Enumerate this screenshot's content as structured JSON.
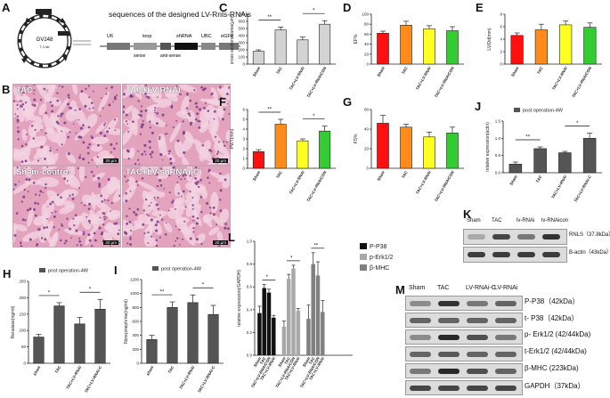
{
  "panel_labels": {
    "A": "A",
    "B": "B",
    "C": "C",
    "D": "D",
    "E": "E",
    "F": "F",
    "G": "G",
    "H": "H",
    "I": "I",
    "J": "J",
    "K": "K",
    "L": "L",
    "M": "M"
  },
  "panelA": {
    "heading": "sequences of the designed LV-Rnls-RNAis",
    "plasmid_name": "GV248",
    "plasmid_size": "7.1 kb",
    "segments": [
      "U6",
      "loop",
      "shRNA",
      "UBC",
      "eGFP"
    ],
    "sub": [
      "sense",
      "anti-sense"
    ]
  },
  "panelB": {
    "images": [
      {
        "title": "TAC",
        "scale": "20 μm"
      },
      {
        "title": "TAC+LV-RNAi",
        "scale": "20 μm"
      },
      {
        "title": "Sham-control",
        "scale": "20 μm"
      },
      {
        "title": "TAC+LV-shRNAi-C",
        "scale": "20 μm"
      }
    ]
  },
  "chart_data": [
    {
      "panel": "C",
      "type": "bar",
      "ylabel": "cross sectional area(μm²)",
      "ylim": [
        0,
        700
      ],
      "yticks": [
        "0",
        "100",
        "200",
        "300",
        "400",
        "500",
        "600",
        "700"
      ],
      "categories": [
        "Sham",
        "TAC",
        "TAC+LV-RNAi",
        "TAC+LV-RNAiCON"
      ],
      "values": [
        180,
        480,
        340,
        560
      ],
      "errors": [
        20,
        40,
        40,
        50
      ],
      "colors": [
        "#d3d3d3",
        "#d3d3d3",
        "#d3d3d3",
        "#d3d3d3"
      ],
      "sig": [
        {
          "from": 0,
          "to": 1,
          "text": "**"
        },
        {
          "from": 2,
          "to": 3,
          "text": "*"
        }
      ]
    },
    {
      "panel": "D",
      "type": "bar",
      "ylabel": "EF%",
      "ylim": [
        0,
        100
      ],
      "yticks": [
        "0",
        "20",
        "40",
        "60",
        "80",
        "100"
      ],
      "categories": [
        "Sham",
        "TAC",
        "TAC+LV-RNAi",
        "TAC+LV-RNAiCON"
      ],
      "values": [
        62,
        78,
        71,
        67
      ],
      "errors": [
        4,
        8,
        6,
        8
      ],
      "colors": [
        "#ff1010",
        "#ff8c1a",
        "#ffff22",
        "#33cc33"
      ],
      "sig": []
    },
    {
      "panel": "E",
      "type": "bar",
      "ylabel": "LVIDd(mm)",
      "ylim": [
        0,
        8
      ],
      "yticks": [
        "0",
        "2",
        "4",
        "6",
        "8"
      ],
      "categories": [
        "Sham",
        "TAC",
        "TAC+LV-RNAi",
        "TAC+LV-RNAiCON"
      ],
      "values": [
        4.6,
        5.5,
        6.3,
        5.9
      ],
      "errors": [
        0.4,
        0.9,
        0.6,
        0.7
      ],
      "colors": [
        "#ff1010",
        "#ff8c1a",
        "#ffff22",
        "#33cc33"
      ],
      "sig": []
    },
    {
      "panel": "F",
      "type": "bar",
      "ylabel": "PWT(mm)",
      "ylim": [
        0,
        6
      ],
      "yticks": [
        "0",
        "1",
        "2",
        "3",
        "4",
        "5",
        "6"
      ],
      "categories": [
        "Sham",
        "TAC",
        "TAC+LV-RNAi",
        "TAC+LV-RNAiCON"
      ],
      "values": [
        1.7,
        4.5,
        2.8,
        3.8
      ],
      "errors": [
        0.2,
        0.5,
        0.2,
        0.5
      ],
      "colors": [
        "#ff1010",
        "#ff8c1a",
        "#ffff22",
        "#33cc33"
      ],
      "sig": [
        {
          "from": 0,
          "to": 1,
          "text": "**"
        },
        {
          "from": 2,
          "to": 3,
          "text": "*"
        }
      ]
    },
    {
      "panel": "G",
      "type": "bar",
      "ylabel": "FS%",
      "ylim": [
        0,
        60
      ],
      "yticks": [
        "0",
        "20",
        "40",
        "60"
      ],
      "categories": [
        "Sham",
        "TAC",
        "TAC+LV-RNAi",
        "TAC+LV-RNAiCON"
      ],
      "values": [
        46,
        42,
        32,
        36
      ],
      "errors": [
        8,
        3,
        5,
        6
      ],
      "colors": [
        "#ff1010",
        "#ff8c1a",
        "#ffff22",
        "#33cc33"
      ],
      "sig": []
    },
    {
      "panel": "H",
      "type": "bar",
      "ylabel": "Renalase(ng/ml)",
      "ylim": [
        0,
        250
      ],
      "yticks": [
        "0",
        "50",
        "100",
        "150",
        "200",
        "250"
      ],
      "legend": "post operation-4W",
      "categories": [
        "sham",
        "TAC",
        "TAC+LV-RNAi",
        "TAC+LV-RNAi-C"
      ],
      "values": [
        80,
        175,
        120,
        165
      ],
      "errors": [
        8,
        10,
        20,
        30
      ],
      "colors": [
        "#555555",
        "#555555",
        "#555555",
        "#555555"
      ],
      "sig": [
        {
          "from": 0,
          "to": 1,
          "text": "*"
        },
        {
          "from": 2,
          "to": 3,
          "text": "*"
        }
      ]
    },
    {
      "panel": "I",
      "type": "bar",
      "ylabel": "Norepinephrine(ng/ml)",
      "ylim": [
        0,
        1200
      ],
      "yticks": [
        "0",
        "200",
        "400",
        "600",
        "800",
        "1000",
        "1200"
      ],
      "legend": "post operation-4W",
      "categories": [
        "sham",
        "TAC",
        "TAC+LV-RNAi",
        "TAC+LV-RNAi-C"
      ],
      "values": [
        340,
        800,
        870,
        700
      ],
      "errors": [
        60,
        80,
        110,
        130
      ],
      "colors": [
        "#555555",
        "#555555",
        "#555555",
        "#555555"
      ],
      "sig": [
        {
          "from": 0,
          "to": 1,
          "text": "**"
        },
        {
          "from": 2,
          "to": 3,
          "text": "*"
        }
      ]
    },
    {
      "panel": "J",
      "type": "bar",
      "ylabel": "relative expression(actin)",
      "ylim": [
        0,
        1.5
      ],
      "yticks": [
        "0.0",
        "0.5",
        "1.0",
        "1.5"
      ],
      "legend": "post operation-4W",
      "categories": [
        "Sham",
        "TAC",
        "TAC+LV-RNAi",
        "TAC+LV-RNAi-C"
      ],
      "values": [
        0.25,
        0.7,
        0.58,
        1.0
      ],
      "errors": [
        0.06,
        0.05,
        0.04,
        0.15
      ],
      "colors": [
        "#555555",
        "#555555",
        "#555555",
        "#555555"
      ],
      "sig": [
        {
          "from": 0,
          "to": 1,
          "text": "**"
        },
        {
          "from": 2,
          "to": 3,
          "text": "*"
        }
      ]
    },
    {
      "panel": "L",
      "type": "bar",
      "ylabel": "relative expression(/GAPDH)",
      "ylim": [
        0,
        1.0
      ],
      "yticks": [
        "0.0",
        "0.2",
        "0.4",
        "0.6",
        "0.8",
        "1.0"
      ],
      "legend": [
        "P-P38",
        "p-Erk1/2",
        "β-MHC"
      ],
      "categories": [
        "Sham",
        "TAC",
        "TAC+LV-RNAiCON",
        "TAC+LV-RNAi"
      ],
      "series": [
        {
          "name": "P-P38",
          "values": [
            0.37,
            0.59,
            0.55,
            0.33
          ],
          "errors": [
            0.06,
            0.03,
            0.03,
            0.02
          ],
          "color": "#111111"
        },
        {
          "name": "p-Erk1/2",
          "values": [
            0.25,
            0.67,
            0.76,
            0.39
          ],
          "errors": [
            0.05,
            0.04,
            0.03,
            0.02
          ],
          "color": "#a8a8a8"
        },
        {
          "name": "β-MHC",
          "values": [
            0.32,
            0.8,
            0.7,
            0.38
          ],
          "errors": [
            0.12,
            0.1,
            0.12,
            0.1
          ],
          "color": "#808080"
        }
      ],
      "sig": [
        {
          "group": 0,
          "text": "*"
        },
        {
          "group": 1,
          "text": "*"
        },
        {
          "group": 2,
          "text": "**"
        }
      ]
    }
  ],
  "panelK": {
    "headers": [
      "Sham",
      "TAC",
      "lv-RNAi",
      "lv-RNAicon"
    ],
    "rows": [
      {
        "name": "RNLS（37.8kDa）"
      },
      {
        "name": "B-actin（43kDa）"
      }
    ]
  },
  "panelM": {
    "headers": [
      "Sham",
      "TAC",
      "LV-RNAi-C",
      "LV-RNAi"
    ],
    "rows": [
      {
        "name": "P-P38（42kDa）"
      },
      {
        "name": "t- P38（42kDa）"
      },
      {
        "name": "p- Erk1/2 (42/44kDa)"
      },
      {
        "name": "t-Erk1/2 (42/44kDa)"
      },
      {
        "name": "β-MHC (223kDa)"
      },
      {
        "name": "GAPDH（37kDa）"
      }
    ]
  }
}
